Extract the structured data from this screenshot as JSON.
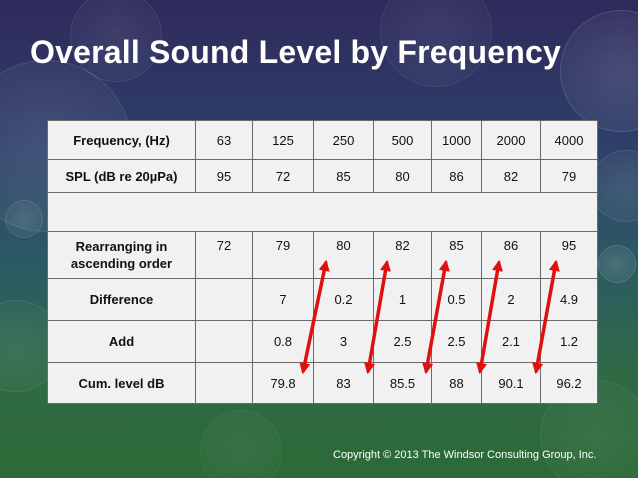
{
  "slide": {
    "title": "Overall Sound Level by Frequency",
    "copyright": "Copyright © 2013 The Windsor Consulting Group, Inc."
  },
  "table": {
    "frequency": {
      "label": "Frequency, (Hz)",
      "values": [
        "63",
        "125",
        "250",
        "500",
        "1000",
        "2000",
        "4000"
      ]
    },
    "spl": {
      "label": "SPL (dB re 20µPa)",
      "values": [
        "95",
        "72",
        "85",
        "80",
        "86",
        "82",
        "79"
      ]
    },
    "rearranged": {
      "label": "Rearranging in ascending order",
      "values": [
        "72",
        "79",
        "80",
        "82",
        "85",
        "86",
        "95"
      ]
    },
    "difference": {
      "label": "Difference",
      "values": [
        "",
        "7",
        "0.2",
        "1",
        "0.5",
        "2",
        "4.9"
      ]
    },
    "add": {
      "label": "Add",
      "values": [
        "",
        "0.8",
        "3",
        "2.5",
        "2.5",
        "2.1",
        "1.2"
      ]
    },
    "cumulative": {
      "label": "Cum. level dB",
      "values": [
        "",
        "79.8",
        "83",
        "85.5",
        "88",
        "90.1",
        "96.2"
      ]
    }
  },
  "colors": {
    "arrow": "#e01010"
  }
}
